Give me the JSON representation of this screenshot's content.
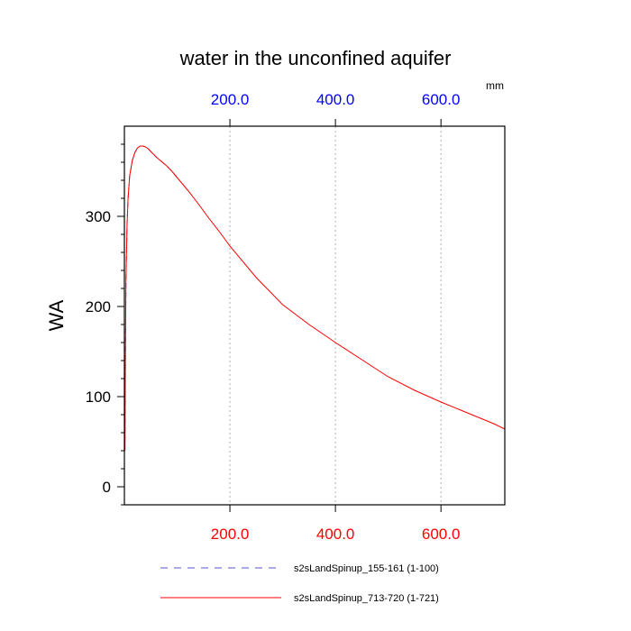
{
  "chart_data": {
    "type": "line",
    "title": "water in the unconfined aquifer",
    "ylabel": "WA",
    "xlabel": "",
    "units": "mm",
    "xlim": [
      0,
      721
    ],
    "ylim": [
      -20,
      400
    ],
    "yticks": [
      0,
      100,
      200,
      300
    ],
    "ytick_labels": [
      "0",
      "100",
      "200",
      "300"
    ],
    "xticks_top": [
      200,
      400,
      600
    ],
    "xtick_labels_top": [
      "200.0",
      "400.0",
      "600.0"
    ],
    "xticks_bottom": [
      200,
      400,
      600
    ],
    "xtick_labels_bottom": [
      "200.0",
      "400.0",
      "600.0"
    ],
    "grid": "vertical dotted at x ticks",
    "legend_position": "bottom",
    "series": [
      {
        "name": "s2sLandSpinup_155-161 (1-100)",
        "color": "#5555cc",
        "style": "dashed",
        "x": [
          1,
          2,
          3,
          5,
          7,
          10,
          15,
          20,
          25,
          30,
          35,
          40,
          45,
          50,
          55,
          60,
          70,
          80,
          90,
          100
        ],
        "y": [
          40,
          150,
          230,
          290,
          320,
          345,
          362,
          371,
          376,
          378,
          378,
          377,
          375,
          372,
          369,
          366,
          361,
          356,
          350,
          343
        ]
      },
      {
        "name": "s2sLandSpinup_713-720 (1-721)",
        "color": "#ff0000",
        "style": "solid",
        "x": [
          1,
          2,
          3,
          5,
          7,
          10,
          15,
          20,
          25,
          30,
          35,
          40,
          45,
          50,
          60,
          70,
          80,
          90,
          100,
          120,
          140,
          160,
          180,
          200,
          250,
          300,
          350,
          400,
          450,
          500,
          550,
          600,
          650,
          700,
          721
        ],
        "y": [
          40,
          150,
          230,
          290,
          320,
          345,
          362,
          371,
          376,
          378,
          378,
          377,
          375,
          372,
          366,
          361,
          356,
          350,
          343,
          329,
          314,
          298,
          283,
          267,
          232,
          202,
          180,
          160,
          141,
          122,
          107,
          94,
          82,
          70,
          64
        ]
      }
    ]
  }
}
